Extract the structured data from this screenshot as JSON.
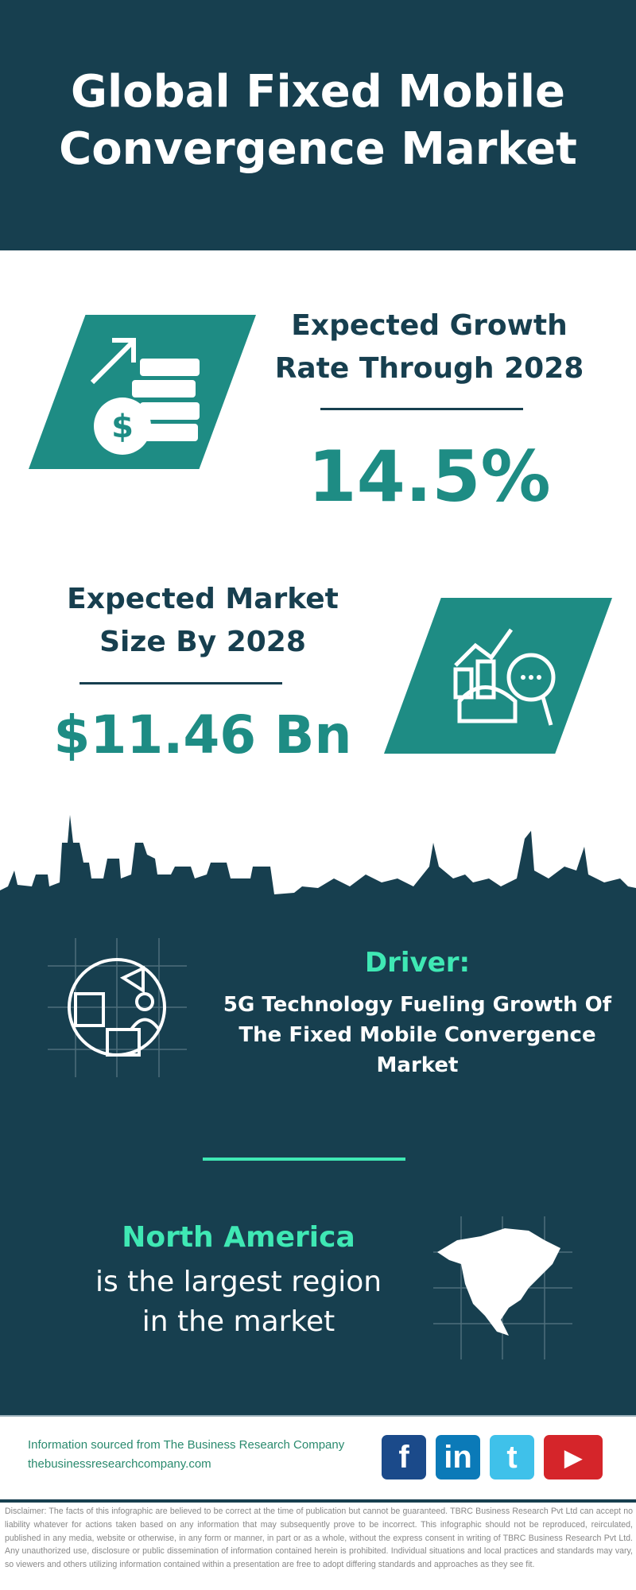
{
  "header": {
    "title_line1": "Global Fixed Mobile",
    "title_line2": "Convergence Market"
  },
  "growth": {
    "label_line1": "Expected Growth",
    "label_line2": "Rate Through 2028",
    "value": "14.5%",
    "icon": "money-growth-icon"
  },
  "market_size": {
    "label_line1": "Expected Market",
    "label_line2": "Size By 2028",
    "value": "$11.46 Bn",
    "icon": "market-analysis-icon"
  },
  "driver": {
    "heading": "Driver:",
    "text": "5G Technology Fueling Growth Of The Fixed Mobile Convergence Market",
    "icon": "marketing-icon"
  },
  "region": {
    "name": "North America",
    "line1": "is the largest region",
    "line2": "in the market",
    "icon": "north-america-map-icon"
  },
  "footer": {
    "source": "Information sourced from The Business Research Company",
    "url": "thebusinessresearchcompany.com",
    "social": [
      {
        "name": "facebook",
        "glyph": "f"
      },
      {
        "name": "linkedin",
        "glyph": "in"
      },
      {
        "name": "twitter",
        "glyph": "t"
      },
      {
        "name": "youtube",
        "glyph": "▶"
      }
    ]
  },
  "disclaimer": "Disclaimer: The facts of this infographic are believed to be correct at the time of publication but cannot be guaranteed. TBRC Business Research Pvt Ltd can accept no liability whatever for actions taken based on any information that may subsequently prove to be incorrect. This infographic should not be reproduced, reirculated, published in any media, website or otherwise, in any form or manner, in part or as a whole, without the express consent in writing of TBRC Business Research Pvt Ltd. Any unauthorized use, disclosure or public dissemination of information contained herein is prohibited. Individual situations and local practices and standards may vary, so viewers and others utilizing information contained within a presentation are free to adopt differing standards and approaches as they see fit.",
  "colors": {
    "dark": "#173f4f",
    "teal": "#1e8c84",
    "accent": "#3fe8b4"
  }
}
